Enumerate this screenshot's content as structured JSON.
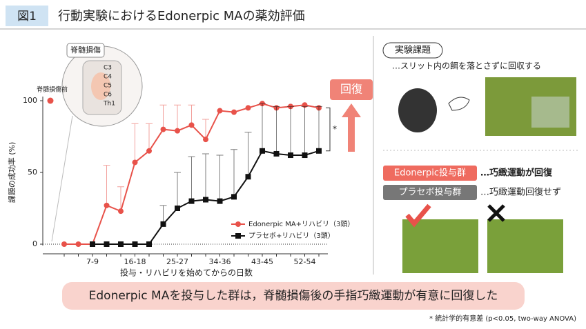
{
  "header": {
    "figure_label": "図1",
    "title": "行動実験におけるEdonerpic MAの薬効評価"
  },
  "chart_data": {
    "type": "line",
    "y_label": "課題の成功率 (%)",
    "x_label": "投与・リハビリを始めてからの日数",
    "categories": [
      null,
      null,
      "7-9",
      null,
      null,
      "16-18",
      null,
      null,
      "25-27",
      null,
      null,
      "34-36",
      null,
      null,
      "43-45",
      null,
      null,
      "52-54",
      null
    ],
    "series": [
      {
        "name": "Edonerpic MA+リハビリ（3頭）",
        "color": "#e8524a",
        "marker": "circle",
        "values": [
          0,
          0,
          0,
          27,
          23,
          57,
          65,
          80,
          79,
          83,
          73,
          93,
          92,
          95,
          98,
          95,
          96,
          97,
          95
        ],
        "errors": [
          null,
          null,
          null,
          28,
          17,
          27,
          19,
          17,
          18,
          14,
          14,
          null,
          null,
          null,
          null,
          null,
          null,
          null,
          null
        ]
      },
      {
        "name": "プラセボ+リハビリ（3頭）",
        "color": "#111111",
        "marker": "square",
        "values": [
          null,
          null,
          0,
          0,
          0,
          0,
          0,
          14,
          25,
          30,
          31,
          30,
          33,
          47,
          65,
          63,
          62,
          62,
          65
        ],
        "errors": [
          null,
          null,
          null,
          null,
          null,
          null,
          null,
          13,
          25,
          31,
          32,
          32,
          33,
          31,
          33,
          33,
          34,
          34,
          31
        ]
      }
    ],
    "pre_injury": {
      "label": "脊髄損傷前",
      "value": 100
    },
    "ylim": [
      0,
      100
    ],
    "yticks": [
      0,
      50,
      100
    ],
    "annotations": {
      "recovery": "回復",
      "significance": "*",
      "injury_site": "脊髄損傷",
      "vertebrae": [
        "C3",
        "C4",
        "C5",
        "C6",
        "Th1"
      ]
    }
  },
  "task_panel": {
    "title": "実験課題",
    "description": "…スリット内の餌を落とさずに回収する"
  },
  "results_panel": {
    "groups": [
      {
        "label": "Edonerpic投与群",
        "outcome": "…巧緻運動が回復"
      },
      {
        "label": "プラセボ投与群",
        "outcome": "…巧緻運動回復せず"
      }
    ]
  },
  "conclusion": "Edonerpic MAを投与した群は，脊髄損傷後の手指巧緻運動が有意に回復した",
  "footnote": "* 統計学的有意差 (p<0.05, two-way ANOVA)"
}
